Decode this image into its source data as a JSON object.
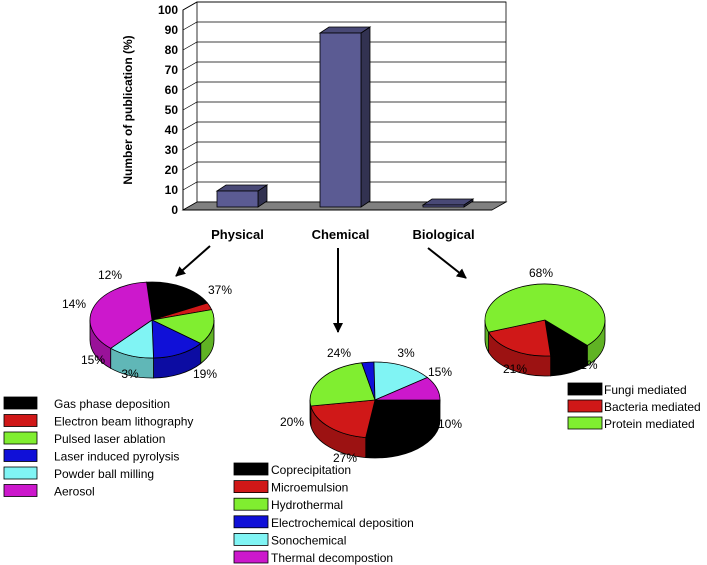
{
  "chart_data": [
    {
      "type": "bar",
      "ylabel": "Number of publication (%)",
      "ylim": [
        0,
        100
      ],
      "yticks": [
        0,
        10,
        20,
        30,
        40,
        50,
        60,
        70,
        80,
        90,
        100
      ],
      "categories": [
        "Physical",
        "Chemical",
        "Biological"
      ],
      "values": [
        8,
        87,
        1
      ],
      "grid": true,
      "bar_color": "#5b5b93"
    },
    {
      "type": "pie",
      "parent": "Physical",
      "labels": [
        "Gas phase deposition",
        "Electron beam lithography",
        "Pulsed laser ablation",
        "Laser induced pyrolysis",
        "Powder ball milling",
        "Aerosol"
      ],
      "values": [
        19,
        3,
        15,
        14,
        12,
        37
      ],
      "value_labels": [
        "19%",
        "3%",
        "15%",
        "14%",
        "12%",
        "37%"
      ],
      "colors": [
        "#000000",
        "#d01818",
        "#80ee30",
        "#1010d8",
        "#80f4f4",
        "#cc18cc"
      ]
    },
    {
      "type": "pie",
      "parent": "Chemical",
      "labels": [
        "Coprecipitation",
        "Microemulsion",
        "Hydrothermal",
        "Electrochemical deposition",
        "Sonochemical",
        "Thermal decompostion"
      ],
      "values": [
        27,
        20,
        24,
        3,
        15,
        10
      ],
      "value_labels": [
        "27%",
        "20%",
        "24%",
        "3%",
        "15%",
        "10%"
      ],
      "colors": [
        "#000000",
        "#d01818",
        "#80ee30",
        "#1010d8",
        "#80f4f4",
        "#cc18cc"
      ]
    },
    {
      "type": "pie",
      "parent": "Biological",
      "labels": [
        "Fungi mediated",
        "Bacteria mediated",
        "Protein mediated"
      ],
      "values": [
        11,
        21,
        68
      ],
      "value_labels": [
        "11%",
        "21%",
        "68%"
      ],
      "colors": [
        "#000000",
        "#d01818",
        "#80ee30"
      ]
    }
  ]
}
